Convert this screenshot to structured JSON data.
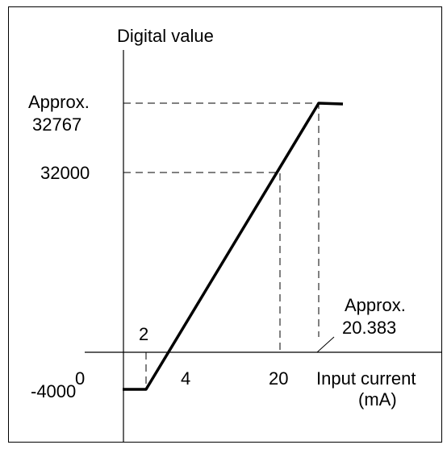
{
  "y_axis": {
    "title": "Digital value",
    "labels": [
      {
        "prefix": "Approx.",
        "text": "32767"
      },
      {
        "text": "32000"
      },
      {
        "text": "-4000"
      }
    ]
  },
  "x_axis": {
    "title": "Input current",
    "unit": "(mA)",
    "labels": [
      "0",
      "2",
      "4",
      "20"
    ],
    "note": {
      "prefix": "Approx.",
      "text": "20.383"
    }
  }
}
